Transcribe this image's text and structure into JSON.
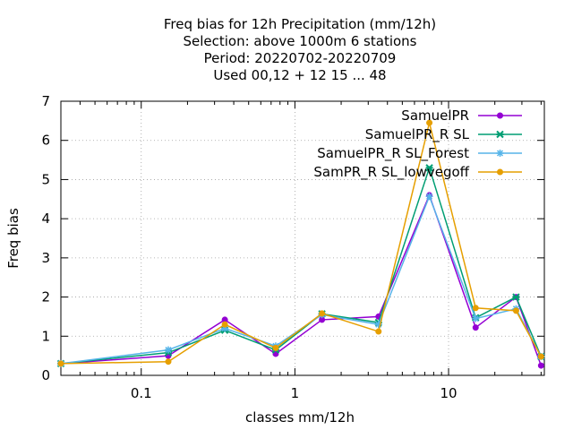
{
  "chart_data": {
    "type": "line",
    "title": [
      "Freq bias  for 12h Precipitation (mm/12h)",
      "Selection: above 1000m      6 stations",
      "Period: 20220702-20220709",
      "Used  00,12  + 12 15 ... 48"
    ],
    "xlabel": "classes mm/12h",
    "ylabel": "Freq bias",
    "xscale": "log",
    "xlim": [
      0.03,
      42
    ],
    "ylim": [
      0,
      7
    ],
    "xticks": [
      {
        "value": 0.1,
        "label": "0.1"
      },
      {
        "value": 1,
        "label": "1"
      },
      {
        "value": 10,
        "label": "10"
      }
    ],
    "yticks": [
      {
        "value": 0,
        "label": "0"
      },
      {
        "value": 1,
        "label": "1"
      },
      {
        "value": 2,
        "label": "2"
      },
      {
        "value": 3,
        "label": "3"
      },
      {
        "value": 4,
        "label": "4"
      },
      {
        "value": 5,
        "label": "5"
      },
      {
        "value": 6,
        "label": "6"
      },
      {
        "value": 7,
        "label": "7"
      }
    ],
    "grid": true,
    "legend_position": "top-right",
    "x": [
      0.03,
      0.15,
      0.35,
      0.75,
      1.5,
      3.5,
      7.5,
      15,
      27.5,
      40
    ],
    "series": [
      {
        "name": "SamuelPR",
        "color": "#9400d3",
        "marker": "circle",
        "values": [
          0.3,
          0.5,
          1.42,
          0.55,
          1.42,
          1.5,
          4.6,
          1.22,
          2.0,
          0.25
        ]
      },
      {
        "name": "SamuelPR_R SL",
        "color": "#009e73",
        "marker": "cross",
        "values": [
          0.3,
          0.58,
          1.15,
          0.65,
          1.57,
          1.35,
          5.3,
          1.47,
          2.0,
          0.48
        ]
      },
      {
        "name": "SamuelPR_R SL_Forest",
        "color": "#56b4e9",
        "marker": "star",
        "values": [
          0.3,
          0.65,
          1.2,
          0.75,
          1.55,
          1.3,
          4.57,
          1.45,
          1.7,
          0.48
        ]
      },
      {
        "name": "SamPR_R SL_lowvegoff",
        "color": "#e69f00",
        "marker": "circle",
        "values": [
          0.3,
          0.35,
          1.3,
          0.7,
          1.58,
          1.12,
          6.45,
          1.72,
          1.65,
          0.48
        ]
      }
    ]
  }
}
